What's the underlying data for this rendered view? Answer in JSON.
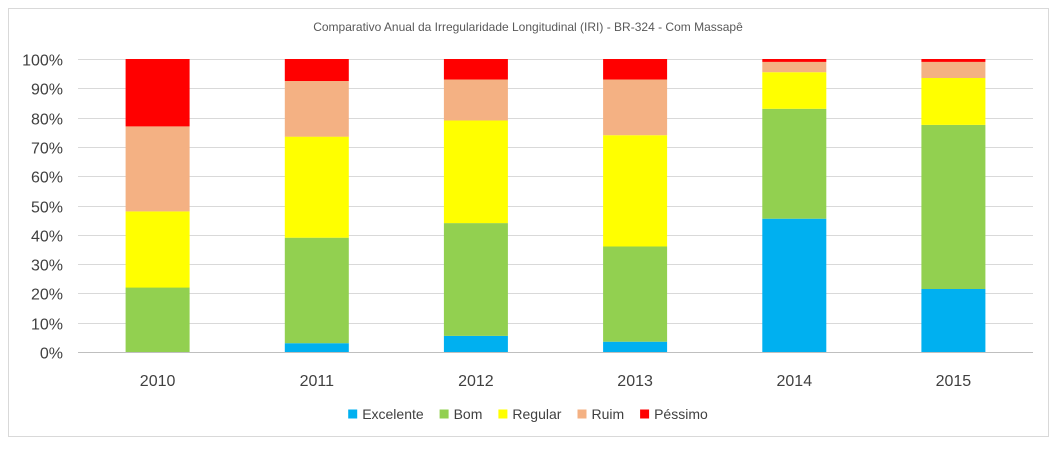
{
  "chart_data": {
    "type": "bar",
    "stacked": true,
    "title": "Comparativo Anual da Irregularidade Longitudinal (IRI) - BR-324 - Com Massapê",
    "xlabel": "",
    "ylabel": "",
    "categories": [
      "2010",
      "2011",
      "2012",
      "2013",
      "2014",
      "2015"
    ],
    "ylim": [
      0,
      100
    ],
    "yticks": [
      "0%",
      "10%",
      "20%",
      "30%",
      "40%",
      "50%",
      "60%",
      "70%",
      "80%",
      "90%",
      "100%"
    ],
    "grid": true,
    "legend_position": "bottom",
    "series": [
      {
        "name": "Excelente",
        "color": "#00b0f0",
        "values": [
          0,
          3,
          5.5,
          3.5,
          45.5,
          21.5
        ]
      },
      {
        "name": "Bom",
        "color": "#92d050",
        "values": [
          22,
          36,
          38.5,
          32.5,
          37.5,
          56
        ]
      },
      {
        "name": "Regular",
        "color": "#ffff00",
        "values": [
          26,
          34.5,
          35,
          38,
          12.5,
          16
        ]
      },
      {
        "name": "Ruim",
        "color": "#f4b183",
        "values": [
          29,
          19,
          14,
          19,
          3.5,
          5.5
        ]
      },
      {
        "name": "Péssimo",
        "color": "#ff0000",
        "values": [
          23,
          7.5,
          7,
          7,
          1,
          1
        ]
      }
    ]
  }
}
